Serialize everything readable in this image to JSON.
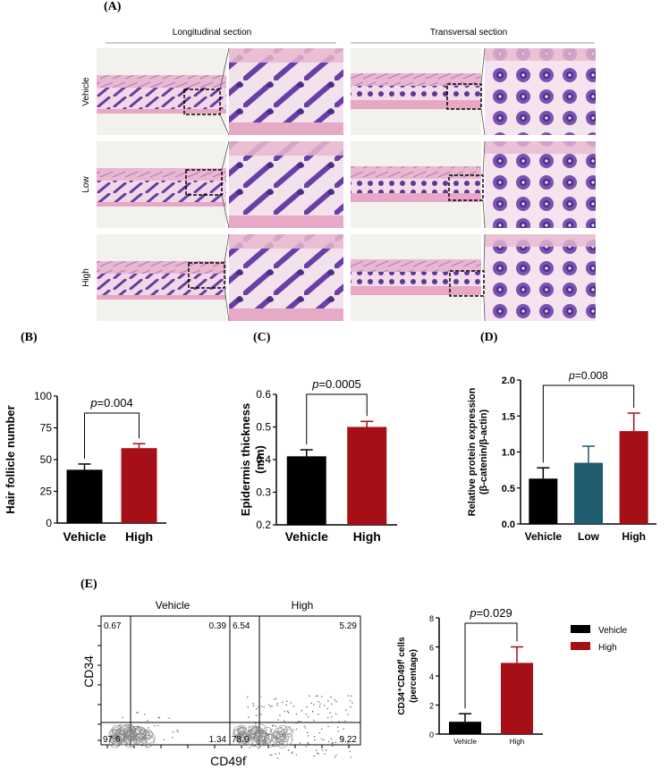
{
  "panel_A": {
    "label": "(A)",
    "headers": [
      "Longitudinal section",
      "Transversal section"
    ],
    "rows": [
      "Vehicle",
      "Low",
      "High"
    ]
  },
  "chart_data": [
    {
      "id": "B",
      "panel_label": "(B)",
      "type": "bar",
      "categories": [
        "Vehicle",
        "High"
      ],
      "values": [
        42,
        59
      ],
      "errors": [
        4.5,
        3.5
      ],
      "colors": [
        "#000000",
        "#a50f15"
      ],
      "ylabel": "Hair follicle number",
      "ylim": [
        0,
        100
      ],
      "yticks": [
        "0",
        "25",
        "50",
        "75",
        "100"
      ],
      "annotation": {
        "p": "p",
        "text": "=0.004",
        "from": 0,
        "to": 1
      }
    },
    {
      "id": "C",
      "panel_label": "(C)",
      "type": "bar",
      "categories": [
        "Vehicle",
        "High"
      ],
      "values": [
        0.41,
        0.5
      ],
      "errors": [
        0.02,
        0.017
      ],
      "colors": [
        "#000000",
        "#a50f15"
      ],
      "ylabel": "Epidermis thickness",
      "ylabel2": "(mm)",
      "ylim": [
        0.2,
        0.6
      ],
      "yticks": [
        "0.2",
        "0.3",
        "0.4",
        "0.5",
        "0.6"
      ],
      "annotation": {
        "p": "p",
        "text": "=0.0005",
        "from": 0,
        "to": 1
      }
    },
    {
      "id": "D",
      "panel_label": "(D)",
      "type": "bar",
      "categories": [
        "Vehicle",
        "Low",
        "High"
      ],
      "values": [
        0.63,
        0.85,
        1.29
      ],
      "errors": [
        0.15,
        0.23,
        0.25
      ],
      "colors": [
        "#000000",
        "#1f5c6e",
        "#a50f15"
      ],
      "ylabel": "Relative protein expression",
      "ylabel2": "(β-catenin/β-actin)",
      "ylim": [
        0,
        2.0
      ],
      "yticks": [
        "0.0",
        "0.5",
        "1.0",
        "1.5",
        "2.0"
      ],
      "annotation": {
        "p": "p",
        "text": "=0.008",
        "from": 0,
        "to": 2
      }
    },
    {
      "id": "E_bar",
      "type": "bar",
      "categories": [
        "Vehicle",
        "High"
      ],
      "values": [
        0.85,
        4.9
      ],
      "errors": [
        0.55,
        1.1
      ],
      "colors": [
        "#000000",
        "#a50f15"
      ],
      "ylabel": "CD34⁺CD49fᶠ cells",
      "ylabel2": "(percentage)",
      "ylim": [
        0,
        8
      ],
      "yticks": [
        "0",
        "2",
        "4",
        "6",
        "8"
      ],
      "legend": [
        "Vehicle",
        "High"
      ],
      "annotation": {
        "p": "p",
        "text": "=0.029",
        "from": 0,
        "to": 1
      }
    }
  ],
  "flow": {
    "panel_label": "(E)",
    "titles": [
      "Vehicle",
      "High"
    ],
    "xlabel": "CD49f",
    "ylabel": "CD34",
    "vehicle_quadrants": {
      "ul": "0.67",
      "ur": "0.39",
      "ll": "97.6",
      "lr": "1.34"
    },
    "high_quadrants": {
      "ul": "6.54",
      "ur": "5.29",
      "ll": "78.9",
      "lr": "9.22"
    }
  }
}
